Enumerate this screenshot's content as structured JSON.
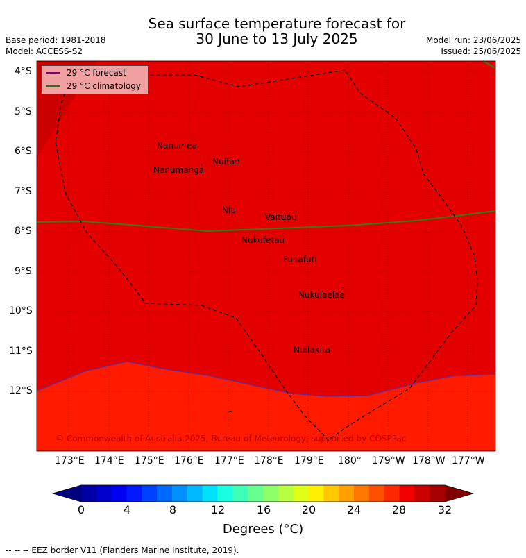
{
  "title": {
    "line1": "Sea surface temperature forecast for",
    "line2": "30 June to 13 July 2025"
  },
  "meta": {
    "base_period": "Base period: 1981-2018",
    "model": "Model: ACCESS-S2",
    "model_run": "Model run: 23/06/2025",
    "issued": "Issued: 25/06/2025"
  },
  "legend": {
    "forecast_label": "29 °C  forecast",
    "climatology_label": "29 °C  climatology",
    "forecast_color": "#800080",
    "climatology_color": "#1a7a1a"
  },
  "map": {
    "lat_labels": [
      "4°S",
      "5°S",
      "6°S",
      "7°S",
      "8°S",
      "9°S",
      "10°S",
      "11°S",
      "12°S"
    ],
    "lon_labels": [
      "173°E",
      "174°E",
      "175°E",
      "176°E",
      "177°E",
      "178°E",
      "179°E",
      "180°",
      "179°W",
      "178°W",
      "177°W"
    ],
    "colors": {
      "warm_29_30": "#e50000",
      "warm_28_29": "#ff1a00",
      "warm_30_31": "#cc0000"
    }
  },
  "places": [
    {
      "name": "Nanumea"
    },
    {
      "name": "Nuitao"
    },
    {
      "name": "Nanumanga"
    },
    {
      "name": "Niu"
    },
    {
      "name": "Vaitupu"
    },
    {
      "name": "Nukufetau"
    },
    {
      "name": "Funafuti"
    },
    {
      "name": "Nukulaelae"
    },
    {
      "name": "Nuilakita"
    }
  ],
  "copyright": "© Commonwealth of Australia 2025, Bureau of Meteorology, supported by COSPPac",
  "colorbar": {
    "ticks": [
      "0",
      "4",
      "8",
      "12",
      "16",
      "20",
      "24",
      "28",
      "32"
    ],
    "label": "Degrees (°C)",
    "colors": [
      "#000080",
      "#0000a6",
      "#0000cc",
      "#0000f2",
      "#0019ff",
      "#0041ff",
      "#0069ff",
      "#0091ff",
      "#00b9ff",
      "#00e0ff",
      "#17ffe0",
      "#3fffb8",
      "#67ff90",
      "#8fff68",
      "#b7ff40",
      "#dfff18",
      "#fff000",
      "#ffc800",
      "#ffa000",
      "#ff7800",
      "#ff5000",
      "#ff2800",
      "#f20000",
      "#cc0000",
      "#a60000",
      "#800000"
    ]
  },
  "footer": "--  --  -- EEZ border V11 (Flanders Marine Institute, 2019)."
}
